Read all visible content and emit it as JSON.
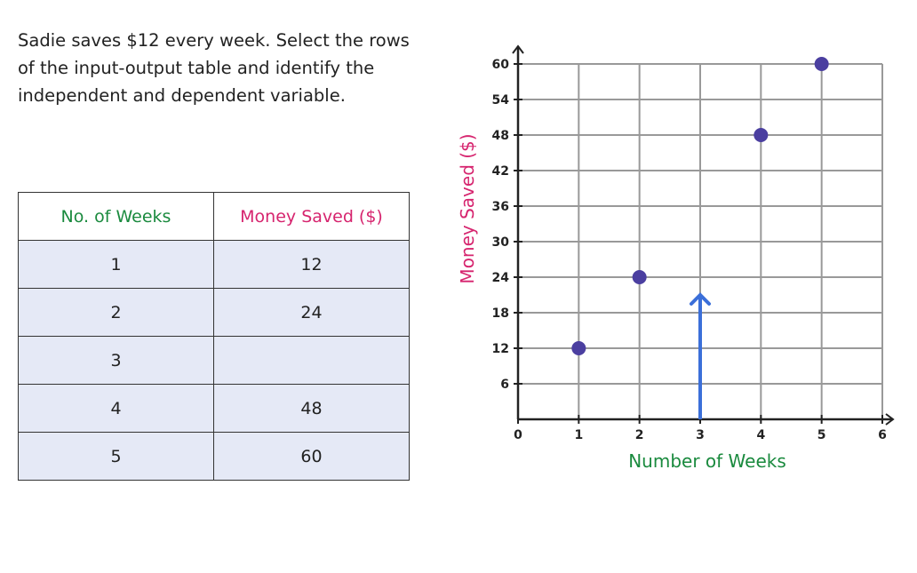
{
  "prompt": "Sadie saves $12 every week. Select the rows of the input-output table and identify the independent and dependent variable.",
  "table": {
    "headers": [
      "No. of Weeks",
      "Money Saved ($)"
    ],
    "rows": [
      [
        "1",
        "12"
      ],
      [
        "2",
        "24"
      ],
      [
        "3",
        ""
      ],
      [
        "4",
        "48"
      ],
      [
        "5",
        "60"
      ]
    ]
  },
  "chart_data": {
    "type": "scatter",
    "xlabel": "Number of Weeks",
    "ylabel": "Money Saved ($)",
    "xlim": [
      0,
      6
    ],
    "ylim": [
      0,
      60
    ],
    "xticks": [
      "0",
      "1",
      "2",
      "3",
      "4",
      "5",
      "6"
    ],
    "yticks": [
      "6",
      "12",
      "18",
      "24",
      "30",
      "36",
      "42",
      "48",
      "54",
      "60"
    ],
    "grid": true,
    "points": [
      {
        "x": 1,
        "y": 12
      },
      {
        "x": 2,
        "y": 24
      },
      {
        "x": 4,
        "y": 48
      },
      {
        "x": 5,
        "y": 60
      }
    ],
    "arrow": {
      "x": 3,
      "y": 21
    },
    "colors": {
      "points": "#4b3fa0",
      "arrow": "#3b6fd9",
      "xlabel": "#1a8a3e",
      "ylabel": "#d6246e",
      "grid": "#999999"
    }
  }
}
